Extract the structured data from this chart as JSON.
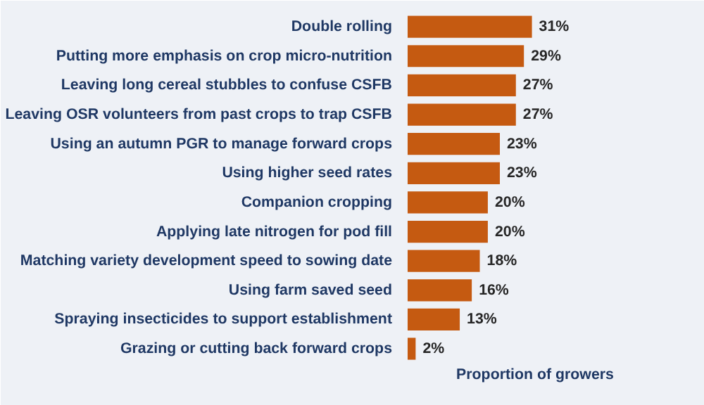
{
  "chart_data": {
    "type": "bar",
    "orientation": "horizontal",
    "xlabel": "Proportion of growers",
    "categories": [
      "Double rolling",
      "Putting more emphasis on crop micro-nutrition",
      "Leaving long cereal stubbles to confuse CSFB",
      "Leaving OSR volunteers from past crops to trap CSFB",
      "Using an autumn PGR to manage forward crops",
      "Using higher seed rates",
      "Companion cropping",
      "Applying late nitrogen for pod fill",
      "Matching variety development speed to sowing date",
      "Using farm saved seed",
      "Spraying insecticides to support establishment",
      "Grazing or cutting back forward crops"
    ],
    "values": [
      31,
      29,
      27,
      27,
      23,
      23,
      20,
      20,
      18,
      16,
      13,
      2
    ],
    "value_labels": [
      "31%",
      "29%",
      "27%",
      "27%",
      "23%",
      "23%",
      "20%",
      "20%",
      "18%",
      "16%",
      "13%",
      "2%"
    ],
    "color": "#c55a11",
    "grid": false
  }
}
